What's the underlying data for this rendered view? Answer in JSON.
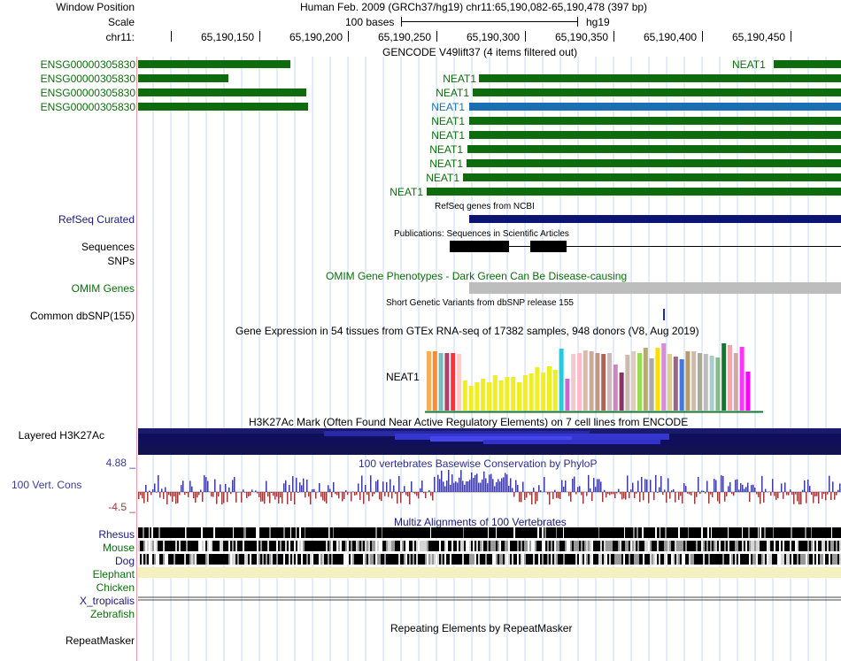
{
  "header": {
    "window_position_label": "Window Position",
    "scale_label": "Scale",
    "chr_label": "chr11:",
    "assembly_text": "Human Feb. 2009 (GRCh37/hg19)   chr11:65,190,082-65,190,478 (397 bp)",
    "scale_text": "100 bases",
    "scale_db": "hg19",
    "ticks": [
      "65,190,150",
      "65,190,200",
      "65,190,250",
      "65,190,300",
      "65,190,350",
      "65,190,400",
      "65,190,450"
    ]
  },
  "gencode": {
    "title": "GENCODE V49lift37 (4 items filtered out)",
    "left_labels": [
      "ENSG00000305830",
      "ENSG00000305830",
      "ENSG00000305830",
      "ENSG00000305830"
    ],
    "neat_labels": [
      "NEAT1",
      "NEAT1",
      "NEAT1",
      "NEAT1",
      "NEAT1",
      "NEAT1",
      "NEAT1",
      "NEAT1",
      "NEAT1",
      "NEAT1"
    ]
  },
  "refseq": {
    "label": "RefSeq Curated",
    "title": "RefSeq genes from NCBI"
  },
  "publications": {
    "label1": "Sequences",
    "label2": "SNPs",
    "title": "Publications: Sequences in Scientific Articles"
  },
  "omim": {
    "label": "OMIM Genes",
    "title": "OMIM Gene Phenotypes - Dark Green Can Be Disease-causing"
  },
  "dbsnp": {
    "label": "Common dbSNP(155)",
    "title": "Short Genetic Variants from dbSNP release 155"
  },
  "gtex": {
    "title": "Gene Expression in 54 tissues from GTEx RNA-seq of 17382 samples, 948 donors (V8, Aug 2019)",
    "gene": "NEAT1",
    "values": [
      0.88,
      0.88,
      0.85,
      0.85,
      0.85,
      0.84,
      0.45,
      0.37,
      0.42,
      0.47,
      0.42,
      0.52,
      0.45,
      0.5,
      0.5,
      0.42,
      0.52,
      0.55,
      0.65,
      0.56,
      0.66,
      0.6,
      0.92,
      0.48,
      0.84,
      0.86,
      0.9,
      0.88,
      0.86,
      0.84,
      0.86,
      0.68,
      0.57,
      0.83,
      0.88,
      0.86,
      0.94,
      0.78,
      0.93,
      1.0,
      0.84,
      0.8,
      0.76,
      0.88,
      0.88,
      0.86,
      0.84,
      0.82,
      0.79,
      1.0,
      0.97,
      0.86,
      0.95,
      0.58
    ],
    "colors": [
      "#ffaa55",
      "#ff8833",
      "#77bbbb",
      "#aa4466",
      "#ff3333",
      "#ffcccc",
      "#eeee22",
      "#eeee22",
      "#eeee22",
      "#eeee22",
      "#eeee22",
      "#eeee22",
      "#eeee22",
      "#eeee22",
      "#eeee22",
      "#eeee22",
      "#eeee22",
      "#eeee22",
      "#eeee22",
      "#eeee22",
      "#eeee22",
      "#eeee22",
      "#22ccdd",
      "#cc66cc",
      "#eecccc",
      "#ffbbcc",
      "#ddbbaa",
      "#ccaa99",
      "#bb9988",
      "#aa6655",
      "#ccbbbb",
      "#cc88bb",
      "#883366",
      "#ccbbaa",
      "#ddccbb",
      "#99dd55",
      "#bbaa66",
      "#aaaaaa",
      "#ffdd00",
      "#dd88dd",
      "#ddcc99",
      "#996688",
      "#4477dd",
      "#bb9966",
      "#ccbbaa",
      "#aaaa99",
      "#bbbbbb",
      "#aacccc",
      "#88bb88",
      "#117733",
      "#eeaaaa",
      "#ccaaaa",
      "#ff33ff",
      "#ff00ff"
    ]
  },
  "h3k27ac": {
    "label": "Layered H3K27Ac",
    "title": "H3K27Ac Mark (Often Found Near Active Regulatory Elements) on 7 cell lines from ENCODE"
  },
  "phylop": {
    "label": "100 Vert. Cons",
    "max_label": "4.88 _",
    "min_label": "-4.5 _",
    "title": "100 vertebrates Basewise Conservation by PhyloP"
  },
  "multiz": {
    "title": "Multiz Alignments of 100 Vertebrates",
    "species": [
      "Rhesus",
      "Mouse",
      "Dog",
      "Elephant",
      "Chicken",
      "X_tropicalis",
      "Zebrafish"
    ]
  },
  "repeatmasker": {
    "label": "RepeatMasker",
    "title": "Repeating Elements by RepeatMasker"
  },
  "colors": {
    "gene_green": "#0e6b0e",
    "gene_blue": "#1a6fb4",
    "refseq_navy": "#0c1473",
    "cons_blue": "#3b3b9a",
    "cons_red": "#9a3b3b"
  }
}
